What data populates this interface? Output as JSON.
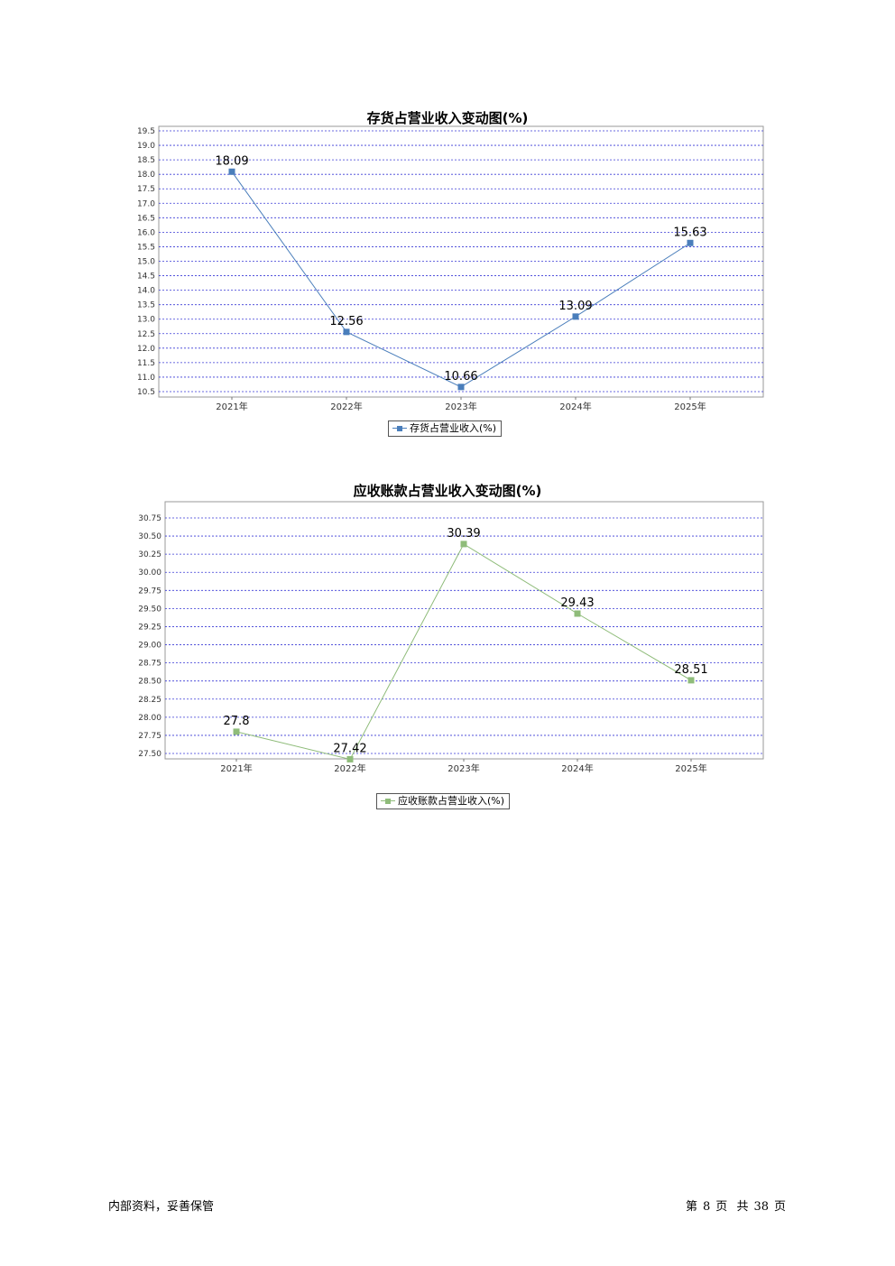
{
  "chart_data": [
    {
      "type": "line",
      "title": "存货占营业收入变动图(%)",
      "categories": [
        "2021年",
        "2022年",
        "2023年",
        "2024年",
        "2025年"
      ],
      "series": [
        {
          "name": "存货占营业收入(%)",
          "values": [
            18.09,
            12.56,
            10.66,
            13.09,
            15.63
          ],
          "labels": [
            "18.09",
            "12.56",
            "10.66",
            "13.09",
            "15.63"
          ],
          "color": "#4a7ebb"
        }
      ],
      "yticks": [
        "10.5",
        "11.0",
        "11.5",
        "12.0",
        "12.5",
        "13.0",
        "13.5",
        "14.0",
        "14.5",
        "15.0",
        "15.5",
        "16.0",
        "16.5",
        "17.0",
        "17.5",
        "18.0",
        "18.5",
        "19.0",
        "19.5"
      ],
      "ylim": [
        10.5,
        19.5
      ],
      "grid": "horizontal dashed",
      "legend": "bottom-center"
    },
    {
      "type": "line",
      "title": "应收账款占营业收入变动图(%)",
      "categories": [
        "2021年",
        "2022年",
        "2023年",
        "2024年",
        "2025年"
      ],
      "series": [
        {
          "name": "应收账款占营业收入(%)",
          "values": [
            27.8,
            27.42,
            30.39,
            29.43,
            28.51
          ],
          "labels": [
            "27.8",
            "27.42",
            "30.39",
            "29.43",
            "28.51"
          ],
          "color": "#8fbc7a"
        }
      ],
      "yticks": [
        "27.50",
        "27.75",
        "28.00",
        "28.25",
        "28.50",
        "28.75",
        "29.00",
        "29.25",
        "29.50",
        "29.75",
        "30.00",
        "30.25",
        "30.50",
        "30.75"
      ],
      "ylim": [
        27.5,
        30.75
      ],
      "grid": "horizontal dashed",
      "legend": "bottom-center"
    }
  ],
  "footer": {
    "left": "内部资料，妥善保管",
    "page_prefix": "第",
    "page_number": "8",
    "page_unit": "页",
    "total_prefix": "共",
    "total_pages": "38",
    "total_unit": "页"
  }
}
